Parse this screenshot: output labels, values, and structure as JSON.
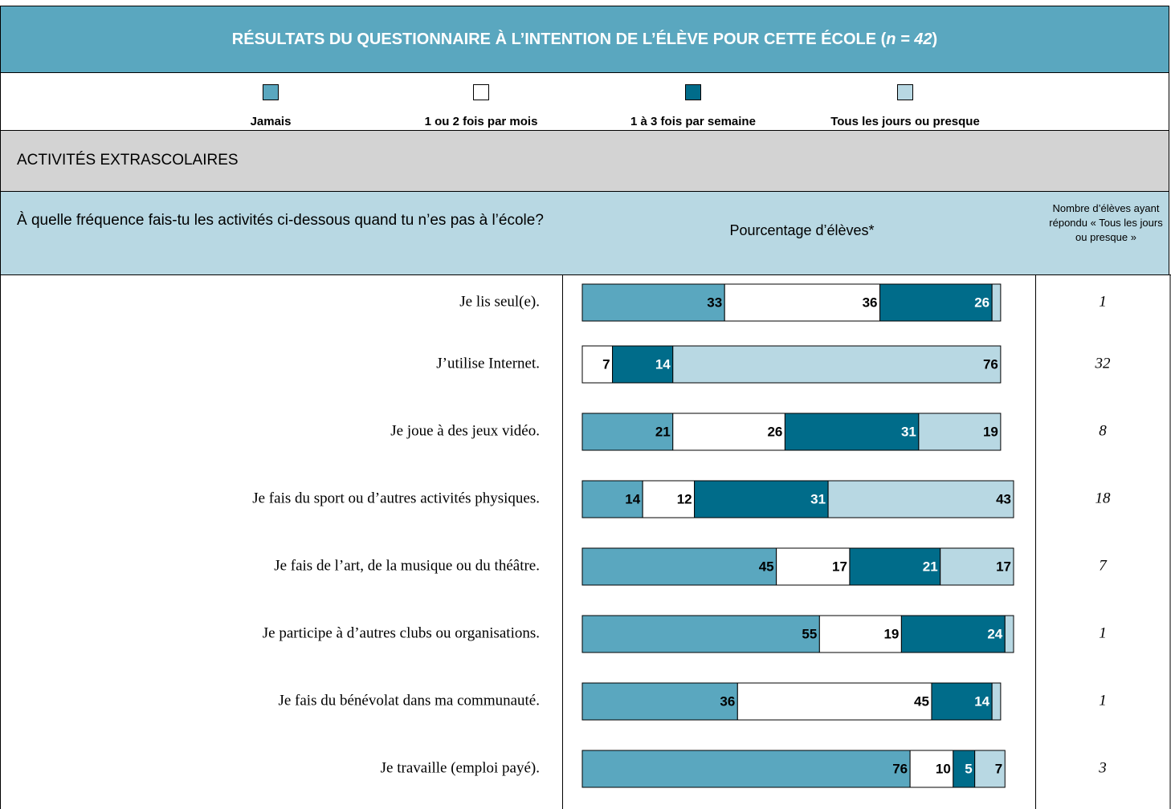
{
  "title_parts": [
    "RÉSULTATS DU QUESTIONNAIRE À L’INTENTION DE L’ÉLÈVE POUR CETTE ÉCOLE (",
    "n = 42",
    ")"
  ],
  "section": "ACTIVITÉS EXTRASCOLAIRES",
  "question": "À quelle fréquence fais-tu les activités ci-dessous quand tu n’es pas à l’école?",
  "count_header": "Nombre d’élèves ayant répondu « Tous les jours ou presque »",
  "counts": [
    1,
    32,
    8,
    18,
    7,
    1,
    1,
    3
  ],
  "chart_data": {
    "type": "bar",
    "orientation": "horizontal",
    "stacked": true,
    "axis_label": "Pourcentage d’élèves*",
    "xlim": [
      0,
      100
    ],
    "categories": [
      "Je lis seul(e).",
      "J’utilise Internet.",
      "Je joue à des jeux vidéo.",
      "Je fais du sport ou d’autres activités physiques.",
      "Je fais de l’art, de la musique ou du théâtre.",
      "Je participe à d’autres clubs ou organisations.",
      "Je fais du bénévolat dans ma communauté.",
      "Je travaille (emploi payé)."
    ],
    "series": [
      {
        "name": "Jamais",
        "color": "#5aa7bf",
        "label_color": "#000000",
        "values": [
          33,
          0,
          21,
          14,
          45,
          55,
          36,
          76
        ],
        "value_labels": [
          "33",
          null,
          "21",
          "14",
          "45",
          "55",
          "36",
          "76"
        ]
      },
      {
        "name": "1 ou 2 fois par mois",
        "color": "#ffffff",
        "label_color": "#000000",
        "values": [
          36,
          7,
          26,
          12,
          17,
          19,
          45,
          10
        ],
        "value_labels": [
          "36",
          "7",
          "26",
          "12",
          "17",
          "19",
          "45",
          "10"
        ]
      },
      {
        "name": "1 à 3 fois par semaine",
        "color": "#006c8a",
        "label_color": "#ffffff",
        "values": [
          26,
          14,
          31,
          31,
          21,
          24,
          14,
          5
        ],
        "value_labels": [
          "26",
          "14",
          "31",
          "31",
          "21",
          "24",
          "14",
          "5"
        ]
      },
      {
        "name": "Tous les jours ou presque",
        "color": "#b8d8e3",
        "label_color": "#000000",
        "values": [
          2,
          76,
          19,
          43,
          17,
          2,
          2,
          7
        ],
        "value_labels": [
          null,
          "76",
          "19",
          "43",
          "17",
          null,
          null,
          "7"
        ]
      }
    ]
  }
}
